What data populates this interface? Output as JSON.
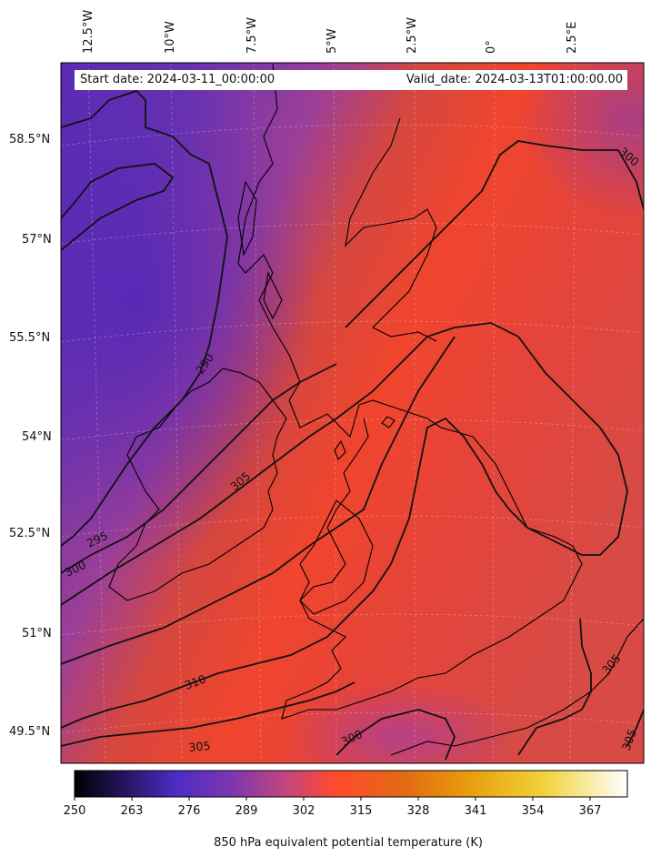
{
  "map": {
    "start_date": "Start date: 2024-03-11_00:00:00",
    "valid_date": "Valid_date: 2024-03-13T01:00:00.00",
    "lon_labels": [
      "12.5°W",
      "10°W",
      "7.5°W",
      "5°W",
      "2.5°W",
      "0°",
      "2.5°E"
    ],
    "lat_labels": [
      "58.5°N",
      "57°N",
      "55.5°N",
      "54°N",
      "52.5°N",
      "51°N",
      "49.5°N"
    ],
    "contour_labels": [
      "290",
      "295",
      "300",
      "305",
      "310",
      "305",
      "300",
      "300",
      "305",
      "305"
    ]
  },
  "colorbar": {
    "label": "850 hPa equivalent potential temperature (K)",
    "ticks": [
      "250",
      "263",
      "276",
      "289",
      "302",
      "315",
      "328",
      "341",
      "354",
      "367"
    ],
    "colormap": [
      "#000004",
      "#3b1f8e",
      "#4b2bc2",
      "#6f37b6",
      "#a2449a",
      "#d4477a",
      "#ff4a2e",
      "#e26b12",
      "#e8a10c",
      "#f1d23b",
      "#fcffa4",
      "#ffffff"
    ]
  }
}
